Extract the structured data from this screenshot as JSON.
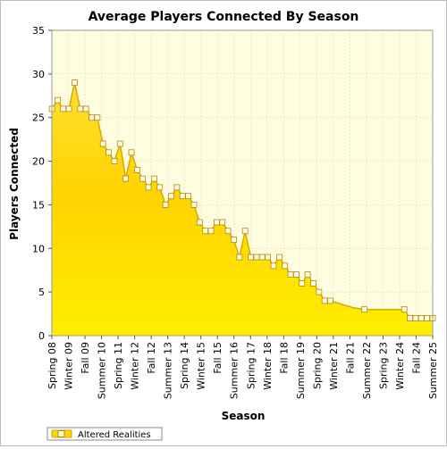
{
  "chart_data": {
    "type": "area",
    "title": "Average Players Connected By Season",
    "xlabel": "Season",
    "ylabel": "Players Connected",
    "ylim": [
      0,
      35
    ],
    "yticks": [
      0,
      5,
      10,
      15,
      20,
      25,
      30,
      35
    ],
    "grid": true,
    "legend_position": "bottom-left",
    "colors": {
      "area_top": "#ffe033",
      "area_mid": "#ffd300",
      "area_bottom": "#ffee00",
      "line": "#d7a900",
      "marker_fill": "#fffbe6",
      "marker_stroke": "#b08a00",
      "plot_bg": "#fffde0",
      "grid": "#d8d4b0"
    },
    "tick_labels": [
      "Spring 08",
      "Winter 09",
      "Fall 09",
      "Summer 10",
      "Spring 11",
      "Winter 12",
      "Fall 12",
      "Summer 13",
      "Spring 14",
      "Winter 15",
      "Fall 15",
      "Summer 16",
      "Spring 17",
      "Winter 18",
      "Fall 18",
      "Summer 19",
      "Spring 20",
      "Winter 21",
      "Fall 21",
      "Summer 22",
      "Spring 23",
      "Winter 24",
      "Fall 24",
      "Summer 25"
    ],
    "series": [
      {
        "name": "Altered Realities",
        "values": [
          26,
          27,
          26,
          26,
          29,
          26,
          26,
          25,
          25,
          22,
          21,
          20,
          22,
          18,
          21,
          19,
          18,
          17,
          18,
          17,
          15,
          16,
          17,
          16,
          16,
          15,
          13,
          12,
          12,
          13,
          13,
          12,
          11,
          9,
          12,
          9,
          9,
          9,
          9,
          8,
          9,
          8,
          7,
          7,
          6,
          7,
          6,
          5,
          4,
          4,
          3.8,
          3.6,
          3.4,
          3.2,
          3.1,
          3,
          3,
          3,
          3,
          3,
          3,
          3,
          3,
          2,
          2,
          2,
          2,
          2
        ],
        "markers": [
          true,
          true,
          true,
          true,
          true,
          true,
          true,
          true,
          true,
          true,
          true,
          true,
          true,
          true,
          true,
          true,
          true,
          true,
          true,
          true,
          true,
          true,
          true,
          true,
          true,
          true,
          true,
          true,
          true,
          true,
          true,
          true,
          true,
          true,
          true,
          true,
          true,
          true,
          true,
          true,
          true,
          true,
          true,
          true,
          true,
          true,
          true,
          true,
          true,
          true,
          false,
          false,
          false,
          false,
          false,
          true,
          false,
          false,
          false,
          false,
          false,
          false,
          true,
          true,
          true,
          true,
          true,
          true
        ]
      }
    ]
  }
}
